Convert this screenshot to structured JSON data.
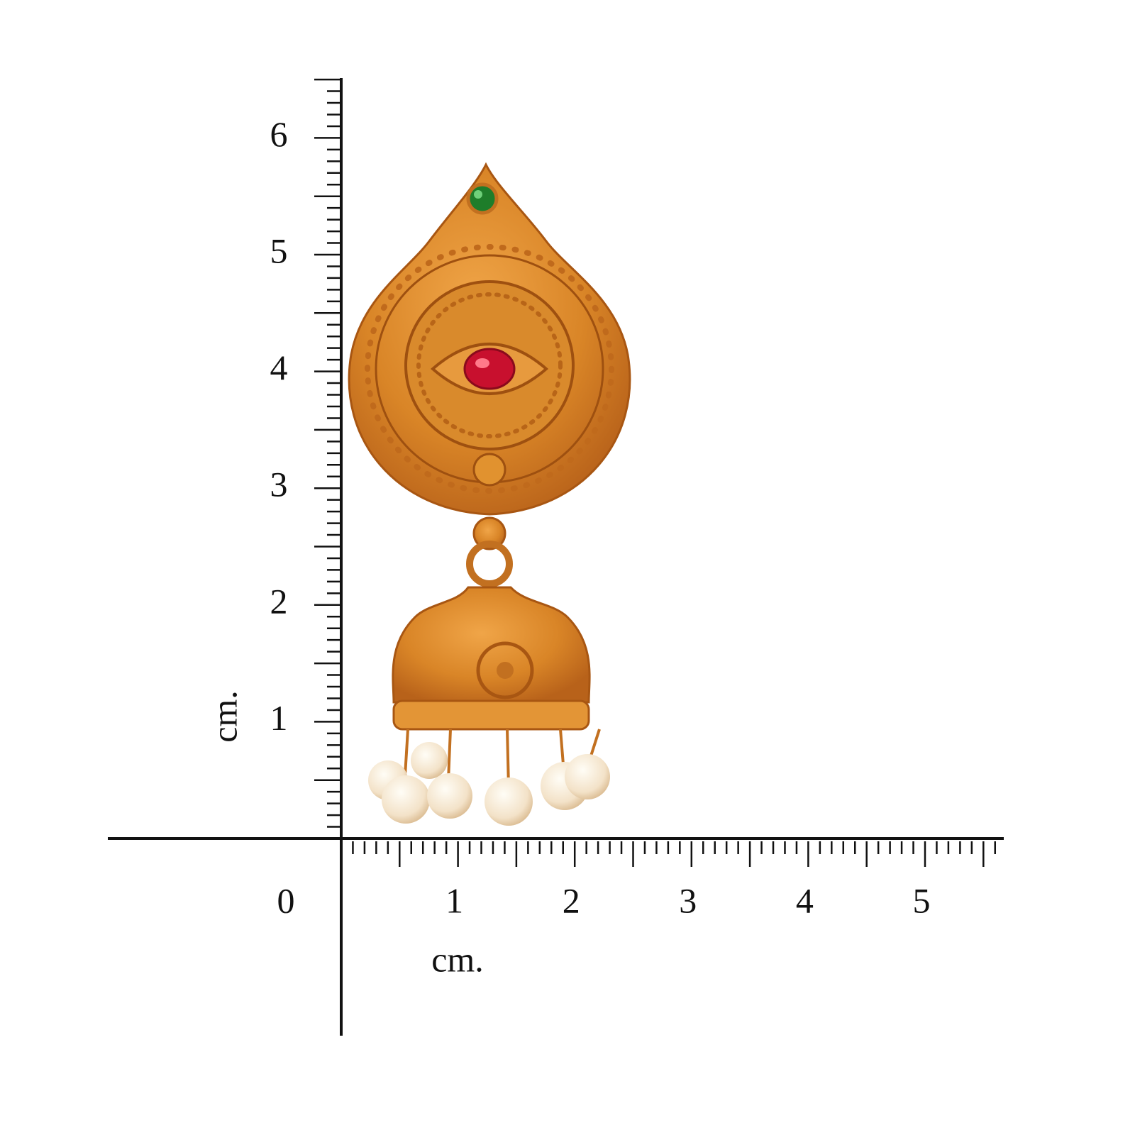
{
  "ruler": {
    "origin_label": "0",
    "x_labels": [
      "1",
      "2",
      "3",
      "4",
      "5"
    ],
    "y_labels": [
      "1",
      "2",
      "3",
      "4",
      "5",
      "6"
    ],
    "x_unit": "cm.",
    "y_unit": "cm."
  }
}
